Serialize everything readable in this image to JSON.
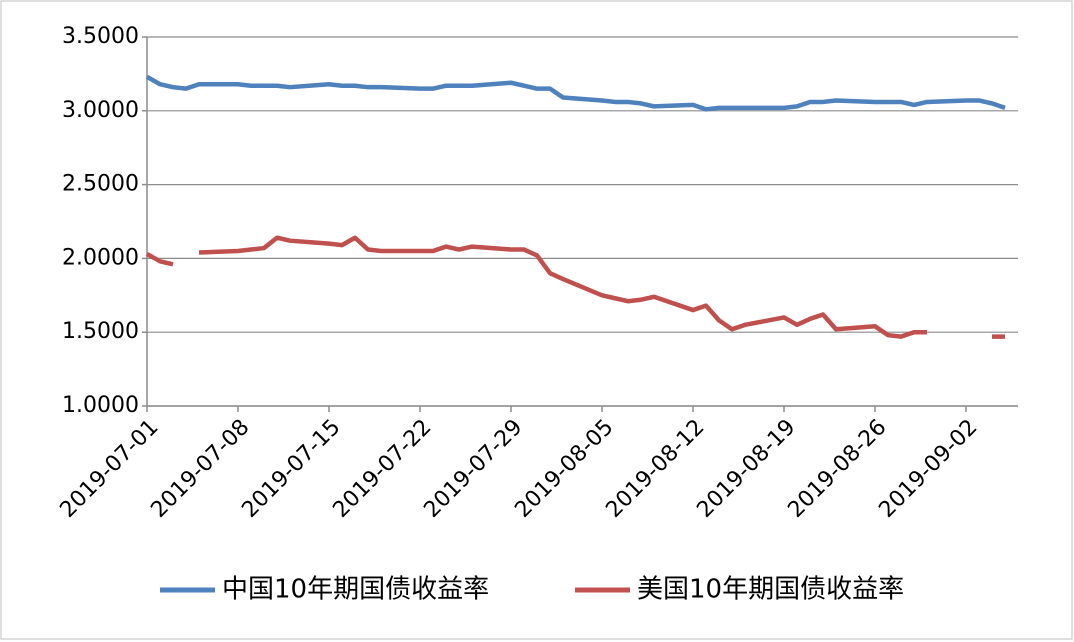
{
  "chart_data": {
    "type": "line",
    "x": [
      "2019-07-01",
      "2019-07-02",
      "2019-07-03",
      "2019-07-04",
      "2019-07-05",
      "2019-07-08",
      "2019-07-09",
      "2019-07-10",
      "2019-07-11",
      "2019-07-12",
      "2019-07-15",
      "2019-07-16",
      "2019-07-17",
      "2019-07-18",
      "2019-07-19",
      "2019-07-22",
      "2019-07-23",
      "2019-07-24",
      "2019-07-25",
      "2019-07-26",
      "2019-07-29",
      "2019-07-30",
      "2019-07-31",
      "2019-08-01",
      "2019-08-02",
      "2019-08-05",
      "2019-08-06",
      "2019-08-07",
      "2019-08-08",
      "2019-08-09",
      "2019-08-12",
      "2019-08-13",
      "2019-08-14",
      "2019-08-15",
      "2019-08-16",
      "2019-08-19",
      "2019-08-20",
      "2019-08-21",
      "2019-08-22",
      "2019-08-23",
      "2019-08-26",
      "2019-08-27",
      "2019-08-28",
      "2019-08-29",
      "2019-08-30",
      "2019-09-02",
      "2019-09-03",
      "2019-09-04",
      "2019-09-05"
    ],
    "series": [
      {
        "name": "中国10年期国债收益率",
        "color": "#4f81bd",
        "values": [
          3.23,
          3.18,
          3.16,
          3.15,
          3.18,
          3.18,
          3.17,
          3.17,
          3.17,
          3.16,
          3.18,
          3.17,
          3.17,
          3.16,
          3.16,
          3.15,
          3.15,
          3.17,
          3.17,
          3.17,
          3.19,
          3.17,
          3.15,
          3.15,
          3.09,
          3.07,
          3.06,
          3.06,
          3.05,
          3.03,
          3.04,
          3.01,
          3.02,
          3.02,
          3.02,
          3.02,
          3.03,
          3.06,
          3.06,
          3.07,
          3.06,
          3.06,
          3.06,
          3.04,
          3.06,
          3.07,
          3.07,
          3.05,
          3.02
        ]
      },
      {
        "name": "美国10年期国债收益率",
        "color": "#c0504d",
        "values": [
          2.03,
          1.98,
          1.96,
          null,
          2.04,
          2.05,
          2.06,
          2.07,
          2.14,
          2.12,
          2.1,
          2.09,
          2.14,
          2.06,
          2.05,
          2.05,
          2.05,
          2.08,
          2.06,
          2.08,
          2.06,
          2.06,
          2.02,
          1.9,
          1.86,
          1.75,
          1.73,
          1.71,
          1.72,
          1.74,
          1.65,
          1.68,
          1.58,
          1.52,
          1.55,
          1.6,
          1.55,
          1.59,
          1.62,
          1.52,
          1.54,
          1.48,
          1.47,
          1.5,
          1.5,
          null,
          null,
          1.47,
          1.47
        ]
      }
    ],
    "xlim": [
      "2019-07-01",
      "2019-09-06"
    ],
    "xticks": [
      "2019-07-01",
      "2019-07-08",
      "2019-07-15",
      "2019-07-22",
      "2019-07-29",
      "2019-08-05",
      "2019-08-12",
      "2019-08-19",
      "2019-08-26",
      "2019-09-02"
    ],
    "ylim": [
      1,
      3.5
    ],
    "yticks": [
      {
        "value": 1,
        "label": "1.0000"
      },
      {
        "value": 1.5,
        "label": "1.5000"
      },
      {
        "value": 2,
        "label": "2.0000"
      },
      {
        "value": 2.5,
        "label": "2.5000"
      },
      {
        "value": 3,
        "label": "3.0000"
      },
      {
        "value": 3.5,
        "label": "3.5000"
      }
    ],
    "grid": true
  }
}
